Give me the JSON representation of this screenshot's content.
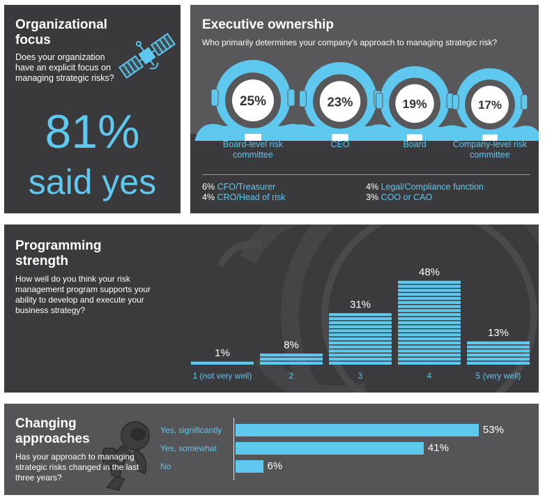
{
  "organizational_focus": {
    "title": "Organizational focus",
    "question": "Does your organization have an explicit focus on managing strategic risks?",
    "value": "81%",
    "caption": "said yes",
    "icon": "satellite-icon"
  },
  "executive_ownership": {
    "title": "Executive ownership",
    "question": "Who primarily determines your company's approach to managing strategic risk?",
    "icon": "astronaut-helmet-icon",
    "others": [
      {
        "value": "6%",
        "label": "CFO/Treasurer"
      },
      {
        "value": "4%",
        "label": "CRO/Head of risk"
      },
      {
        "value": "4%",
        "label": "Legal/Compliance function"
      },
      {
        "value": "3%",
        "label": "COO or CAO"
      }
    ]
  },
  "programming_strength": {
    "title": "Programming strength",
    "question": "How well do you think your risk management program supports your ability to develop and execute your business strategy?"
  },
  "changing_approaches": {
    "title": "Changing approaches",
    "question": "Has your approach to managing strategic risks changed in the last three years?",
    "icon": "astronaut-icon"
  },
  "colors": {
    "accent": "#5ec8ef",
    "panel_dark": "#3a3a3c",
    "panel_mid": "#58585a"
  },
  "chart_data": [
    {
      "type": "bar",
      "categories": [
        "Board-level risk committee",
        "CEO",
        "Board",
        "Company-level risk committee"
      ],
      "values": [
        25,
        23,
        19,
        17
      ],
      "labels": [
        "25%",
        "23%",
        "19%",
        "17%"
      ]
    },
    {
      "type": "bar",
      "categories": [
        "1 (not very well)",
        "2",
        "3",
        "4",
        "5 (very well)"
      ],
      "values": [
        1,
        8,
        31,
        48,
        13
      ],
      "labels": [
        "1%",
        "8%",
        "31%",
        "48%",
        "13%"
      ],
      "ylim": [
        0,
        50
      ]
    },
    {
      "type": "bar",
      "orientation": "horizontal",
      "categories": [
        "Yes, significantly",
        "Yes, somewhat",
        "No"
      ],
      "values": [
        53,
        41,
        6
      ],
      "labels": [
        "53%",
        "41%",
        "6%"
      ],
      "xlim": [
        0,
        60
      ]
    }
  ]
}
